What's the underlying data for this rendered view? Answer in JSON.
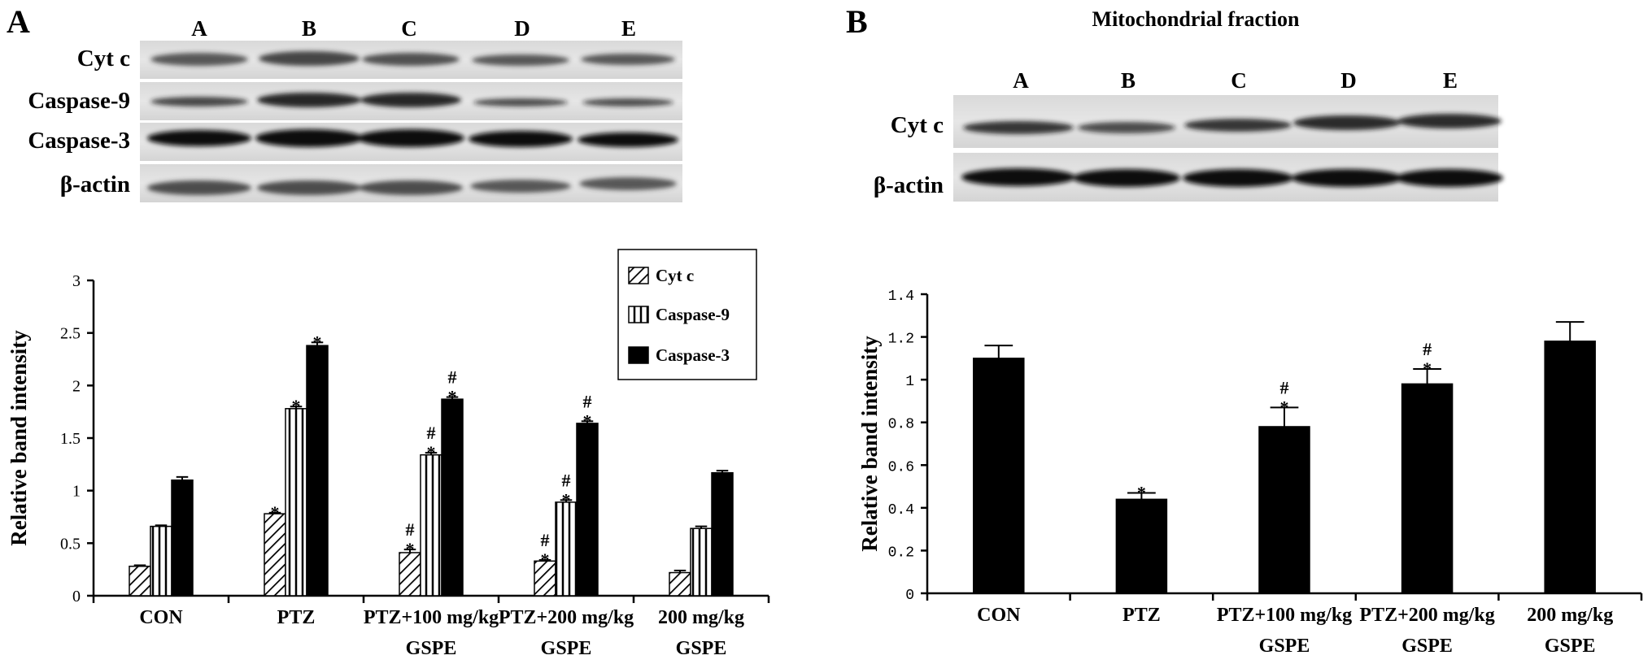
{
  "panel_a": {
    "letter": "A",
    "lanes": [
      "A",
      "B",
      "C",
      "D",
      "E"
    ],
    "blots": [
      "Cyt c",
      "Caspase-9",
      "Caspase-3",
      "β-actin"
    ],
    "legend": [
      "Cyt c",
      "Caspase-9",
      "Caspase-3"
    ]
  },
  "panel_b": {
    "letter": "B",
    "title": "Mitochondrial fraction",
    "lanes": [
      "A",
      "B",
      "C",
      "D",
      "E"
    ],
    "blots": [
      "Cyt c",
      "β-actin"
    ]
  },
  "chart_data": [
    {
      "type": "bar",
      "ylabel": "Relative band intensity",
      "xlabel": "",
      "ylim": [
        0,
        3
      ],
      "yticks": [
        "0",
        "0.5",
        "1",
        "1.5",
        "2",
        "2.5",
        "3"
      ],
      "categories": [
        [
          "CON"
        ],
        [
          "PTZ"
        ],
        [
          "PTZ+100 mg/kg",
          "GSPE"
        ],
        [
          "PTZ+200 mg/kg",
          "GSPE"
        ],
        [
          "200 mg/kg",
          "GSPE"
        ]
      ],
      "series": [
        {
          "name": "Cyt c",
          "fill": "hatch-diagonal",
          "values": [
            0.28,
            0.78,
            0.41,
            0.33,
            0.22
          ],
          "errors": [
            0.01,
            0.01,
            0.03,
            0.01,
            0.02
          ],
          "marks": [
            "",
            "*",
            "*#",
            "*#",
            ""
          ]
        },
        {
          "name": "Caspase-9",
          "fill": "hatch-vertical",
          "values": [
            0.66,
            1.78,
            1.34,
            0.89,
            0.64
          ],
          "errors": [
            0.01,
            0.02,
            0.02,
            0.02,
            0.02
          ],
          "marks": [
            "",
            "*",
            "*#",
            "*#",
            ""
          ]
        },
        {
          "name": "Caspase-3",
          "fill": "solid-black",
          "values": [
            1.1,
            2.38,
            1.87,
            1.64,
            1.17
          ],
          "errors": [
            0.03,
            0.03,
            0.02,
            0.02,
            0.02
          ],
          "marks": [
            "",
            "*",
            "*#",
            "*#",
            ""
          ]
        }
      ]
    },
    {
      "type": "bar",
      "ylabel": "Relative band intensity",
      "xlabel": "",
      "ylim": [
        0,
        1.4
      ],
      "yticks": [
        "0",
        "0.2",
        "0.4",
        "0.6",
        "0.8",
        "1",
        "1.2",
        "1.4"
      ],
      "categories": [
        [
          "CON"
        ],
        [
          "PTZ"
        ],
        [
          "PTZ+100 mg/kg",
          "GSPE"
        ],
        [
          "PTZ+200 mg/kg",
          "GSPE"
        ],
        [
          "200 mg/kg",
          "GSPE"
        ]
      ],
      "series": [
        {
          "name": "Cyt c",
          "fill": "solid-black",
          "values": [
            1.1,
            0.44,
            0.78,
            0.98,
            1.18
          ],
          "errors": [
            0.06,
            0.03,
            0.09,
            0.07,
            0.09
          ],
          "marks": [
            "",
            "*",
            "*#",
            "*#",
            ""
          ]
        }
      ]
    }
  ]
}
